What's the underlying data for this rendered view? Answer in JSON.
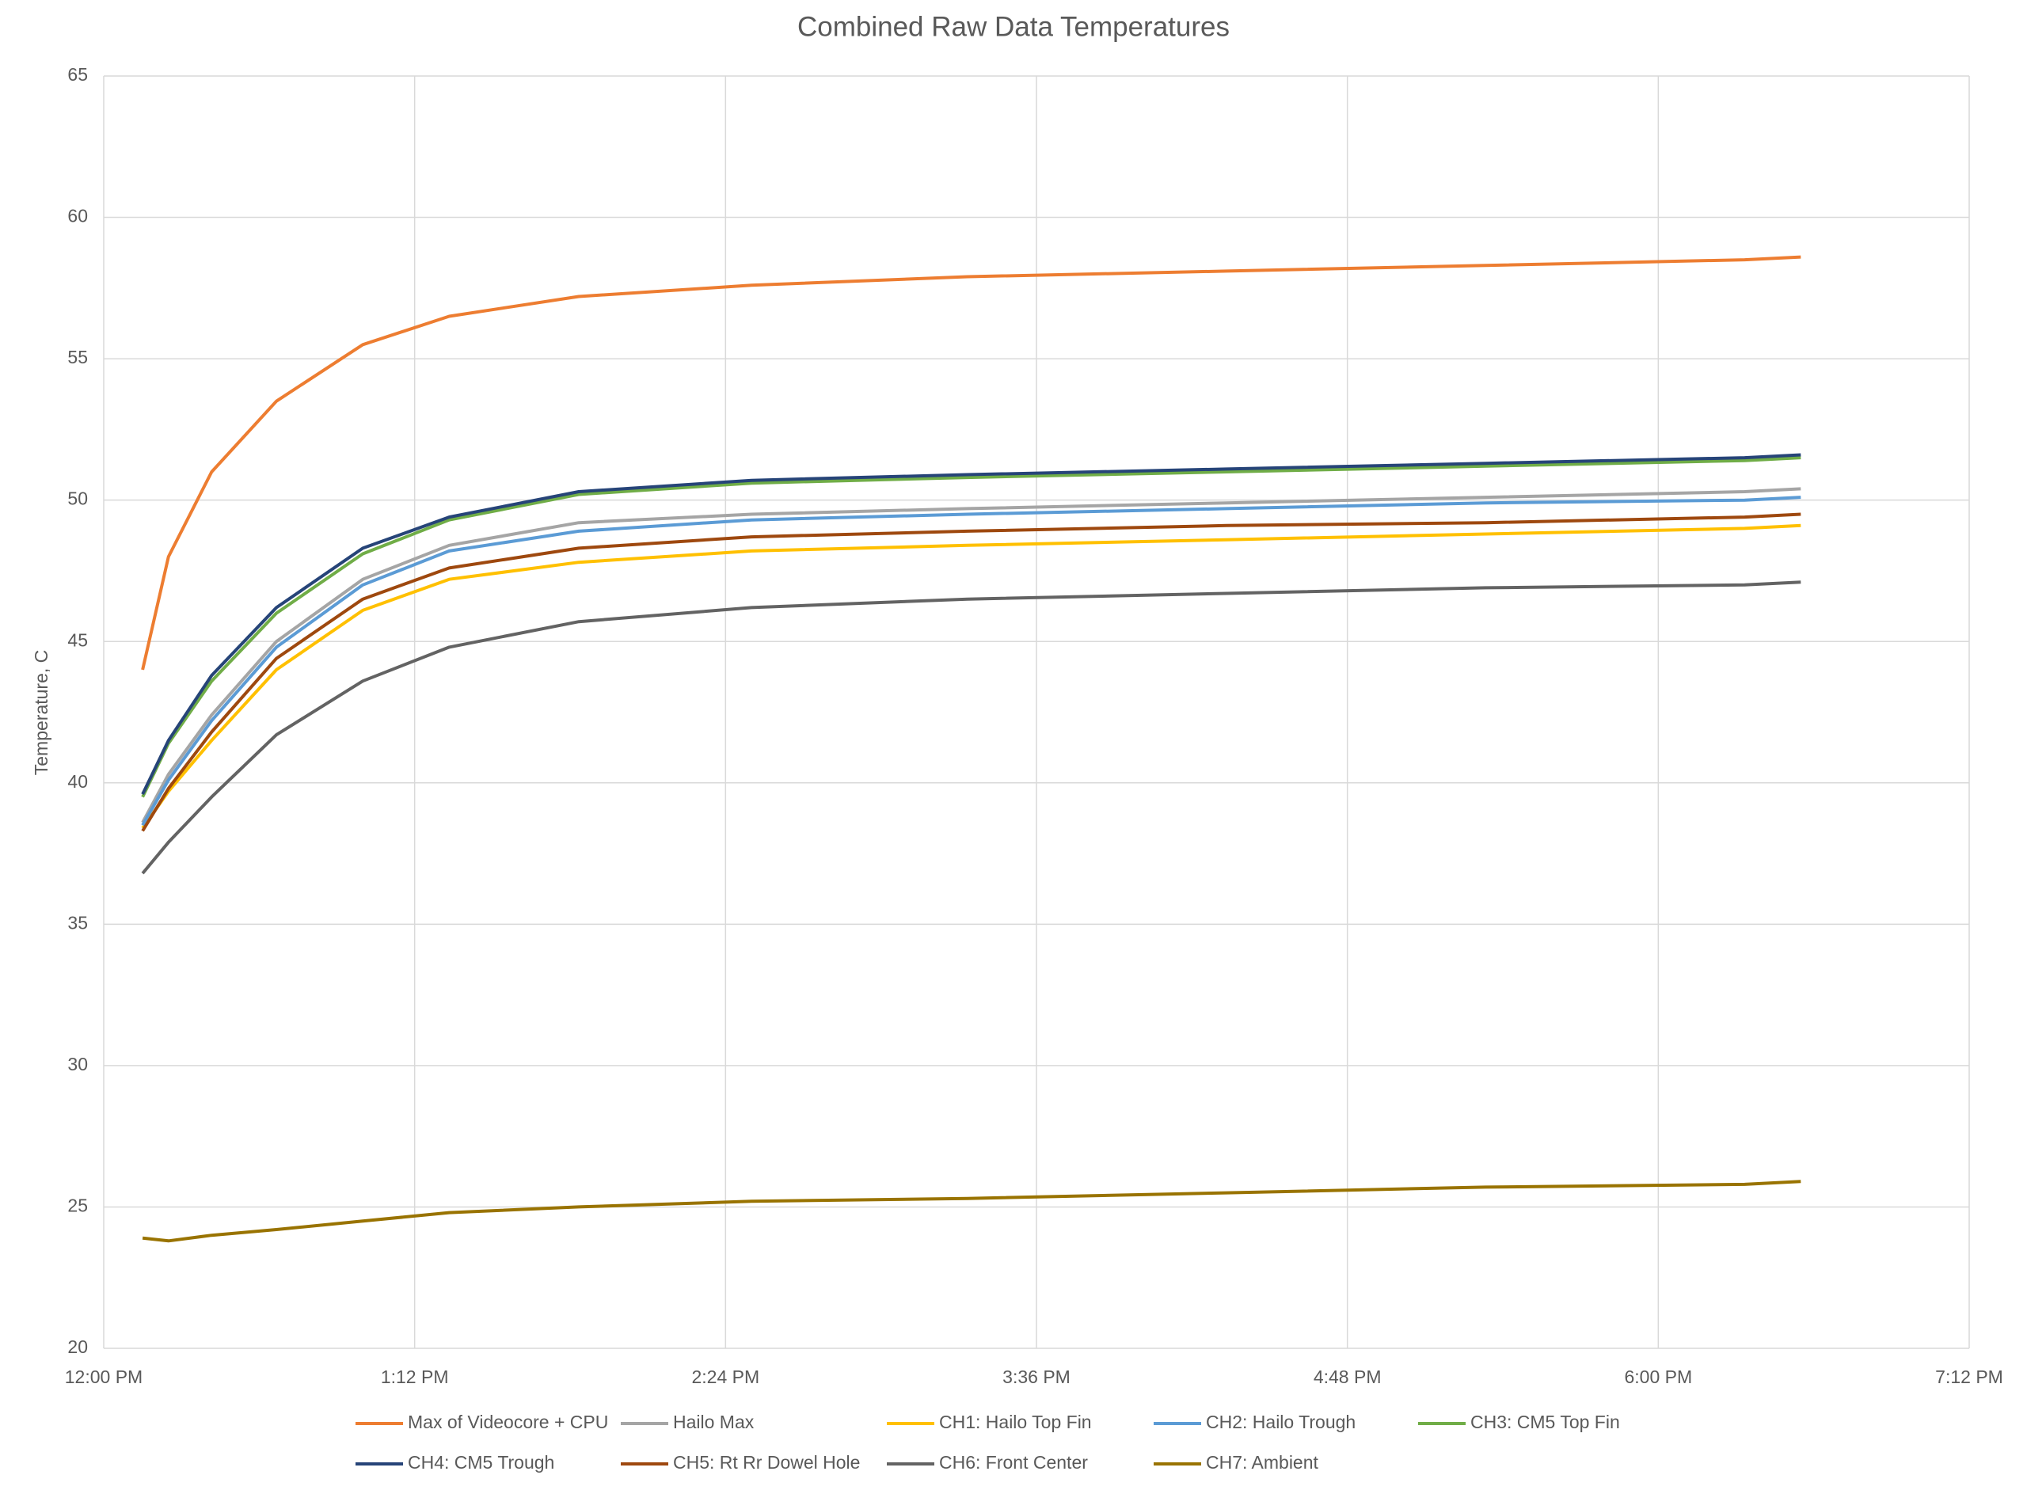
{
  "chart_data": {
    "type": "line",
    "title": "Combined Raw Data Temperatures",
    "y_label": "Temperature, C",
    "x": [
      729,
      735,
      745,
      760,
      780,
      800,
      830,
      870,
      920,
      980,
      1040,
      1100,
      1113
    ],
    "xlim": [
      720,
      1152
    ],
    "xticks": [
      {
        "value": 720,
        "label": "12:00 PM"
      },
      {
        "value": 792,
        "label": "1:12 PM"
      },
      {
        "value": 864,
        "label": "2:24 PM"
      },
      {
        "value": 936,
        "label": "3:36 PM"
      },
      {
        "value": 1008,
        "label": "4:48 PM"
      },
      {
        "value": 1080,
        "label": "6:00 PM"
      },
      {
        "value": 1152,
        "label": "7:12 PM"
      }
    ],
    "ylim": [
      20,
      65
    ],
    "yticks": [
      20,
      25,
      30,
      35,
      40,
      45,
      50,
      55,
      60,
      65
    ],
    "grid": true,
    "series": [
      {
        "name": "Max of Videocore + CPU",
        "color": "#ed7d31",
        "values": [
          44,
          48,
          51,
          53.5,
          55.5,
          56.5,
          57.2,
          57.6,
          57.9,
          58.1,
          58.3,
          58.5,
          58.6
        ]
      },
      {
        "name": "Hailo Max",
        "color": "#a5a5a5",
        "values": [
          38.6,
          40.3,
          42.4,
          45.0,
          47.2,
          48.4,
          49.2,
          49.5,
          49.7,
          49.9,
          50.1,
          50.3,
          50.4
        ]
      },
      {
        "name": "CH1: Hailo Top Fin",
        "color": "#ffc000",
        "values": [
          38.4,
          39.7,
          41.5,
          44.0,
          46.1,
          47.2,
          47.8,
          48.2,
          48.4,
          48.6,
          48.8,
          49.0,
          49.1
        ]
      },
      {
        "name": "CH2: Hailo Trough",
        "color": "#5b9bd5",
        "values": [
          38.5,
          40.1,
          42.2,
          44.8,
          47.0,
          48.2,
          48.9,
          49.3,
          49.5,
          49.7,
          49.9,
          50.0,
          50.1
        ]
      },
      {
        "name": "CH3: CM5 Top Fin",
        "color": "#70ad47",
        "values": [
          39.5,
          41.4,
          43.6,
          46.0,
          48.1,
          49.3,
          50.2,
          50.6,
          50.8,
          51.0,
          51.2,
          51.4,
          51.5
        ]
      },
      {
        "name": "CH4: CM5 Trough",
        "color": "#264478",
        "values": [
          39.6,
          41.5,
          43.8,
          46.2,
          48.3,
          49.4,
          50.3,
          50.7,
          50.9,
          51.1,
          51.3,
          51.5,
          51.6
        ]
      },
      {
        "name": "CH5: Rt Rr Dowel Hole",
        "color": "#9e480e",
        "values": [
          38.3,
          39.8,
          41.8,
          44.4,
          46.5,
          47.6,
          48.3,
          48.7,
          48.9,
          49.1,
          49.2,
          49.4,
          49.5
        ]
      },
      {
        "name": "CH6: Front Center",
        "color": "#636363",
        "values": [
          36.8,
          37.9,
          39.5,
          41.7,
          43.6,
          44.8,
          45.7,
          46.2,
          46.5,
          46.7,
          46.9,
          47.0,
          47.1
        ]
      },
      {
        "name": "CH7: Ambient",
        "color": "#997300",
        "values": [
          23.9,
          23.8,
          24.0,
          24.2,
          24.5,
          24.8,
          25.0,
          25.2,
          25.3,
          25.5,
          25.7,
          25.8,
          25.9
        ]
      }
    ]
  }
}
